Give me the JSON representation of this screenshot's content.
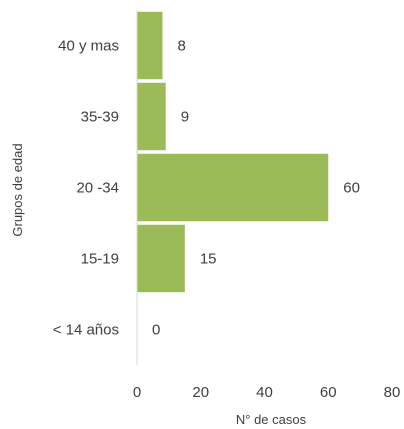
{
  "chart_data": {
    "type": "bar",
    "orientation": "horizontal",
    "categories": [
      "40 y mas",
      "35-39",
      "20 -34",
      "15-19",
      "< 14 años"
    ],
    "values": [
      8,
      9,
      60,
      15,
      0
    ],
    "data_labels": [
      "8",
      "9",
      "60",
      "15",
      "0"
    ],
    "xlabel": "N° de casos",
    "ylabel": "Grupos de edad",
    "xlim": [
      0,
      80
    ],
    "xticks": [
      0,
      20,
      40,
      60,
      80
    ],
    "xtick_labels": [
      "0",
      "20",
      "40",
      "60",
      "80"
    ],
    "bar_color": "#9BBB59",
    "grid": false,
    "legend": "none"
  }
}
